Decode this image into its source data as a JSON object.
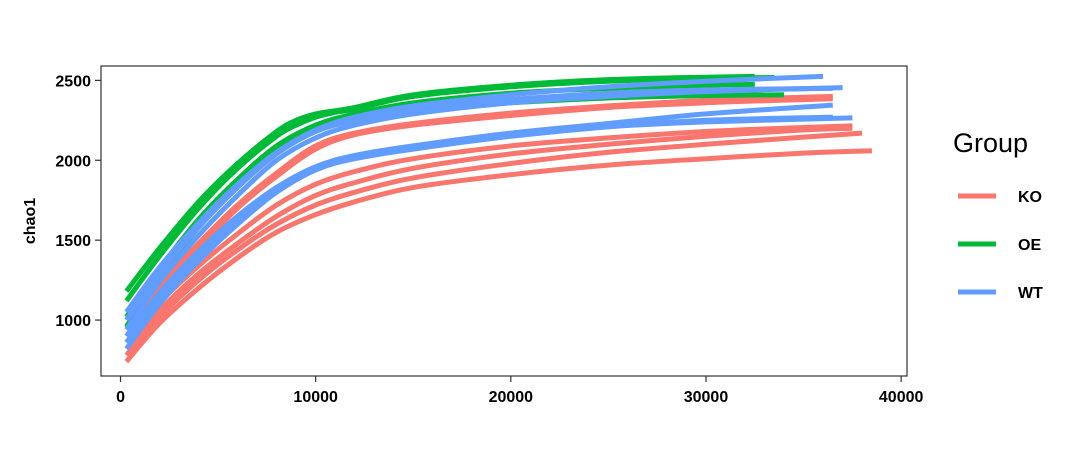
{
  "chart_data": {
    "type": "line",
    "title": "",
    "xlabel": "",
    "ylabel": "chao1",
    "xlim": [
      -1000,
      40300
    ],
    "ylim": [
      650,
      2590
    ],
    "x_ticks": [
      0,
      10000,
      20000,
      30000,
      40000
    ],
    "x_tick_labels": [
      "0",
      "10000",
      "20000",
      "30000",
      "40000"
    ],
    "y_ticks": [
      1000,
      1500,
      2000,
      2500
    ],
    "y_tick_labels": [
      "1000",
      "1500",
      "2000",
      "2500"
    ],
    "grid": false,
    "legend": {
      "title": "Group",
      "position": "right",
      "entries": [
        {
          "label": "KO",
          "color": "#F8766D"
        },
        {
          "label": "OE",
          "color": "#00BA38"
        },
        {
          "label": "WT",
          "color": "#619CFF"
        }
      ]
    },
    "series": [
      {
        "group": "KO",
        "color": "#F8766D",
        "x": [
          300,
          2000,
          4000,
          6000,
          8000,
          10000,
          12000,
          15000,
          20000,
          25000,
          30000,
          35000,
          38500
        ],
        "y": [
          740,
          980,
          1200,
          1390,
          1550,
          1660,
          1740,
          1830,
          1910,
          1970,
          2010,
          2045,
          2060
        ]
      },
      {
        "group": "KO",
        "color": "#F8766D",
        "x": [
          300,
          2000,
          4000,
          6000,
          8000,
          10000,
          12000,
          15000,
          20000,
          25000,
          30000,
          35000,
          38000
        ],
        "y": [
          780,
          1020,
          1250,
          1440,
          1600,
          1720,
          1800,
          1890,
          1980,
          2050,
          2100,
          2145,
          2170
        ]
      },
      {
        "group": "KO",
        "color": "#F8766D",
        "x": [
          300,
          2000,
          4000,
          6000,
          8000,
          10000,
          12000,
          15000,
          20000,
          25000,
          30000,
          35000,
          37500
        ],
        "y": [
          820,
          1060,
          1290,
          1480,
          1650,
          1780,
          1860,
          1950,
          2040,
          2100,
          2150,
          2190,
          2200
        ]
      },
      {
        "group": "KO",
        "color": "#F8766D",
        "x": [
          300,
          2000,
          4000,
          6000,
          8000,
          10000,
          12000,
          15000,
          20000,
          25000,
          30000,
          35000,
          37500
        ],
        "y": [
          860,
          1110,
          1340,
          1540,
          1720,
          1850,
          1930,
          2010,
          2090,
          2140,
          2180,
          2205,
          2215
        ]
      },
      {
        "group": "KO",
        "color": "#F8766D",
        "x": [
          300,
          2000,
          4000,
          6000,
          8000,
          10000,
          12000,
          15000,
          20000,
          25000,
          30000,
          35000,
          36500
        ],
        "y": [
          900,
          1180,
          1450,
          1700,
          1900,
          2070,
          2160,
          2220,
          2280,
          2330,
          2360,
          2380,
          2385
        ]
      },
      {
        "group": "KO",
        "color": "#F8766D",
        "x": [
          300,
          2000,
          4000,
          6000,
          8000,
          10000,
          12000,
          15000,
          20000,
          25000,
          30000,
          35000,
          36500
        ],
        "y": [
          950,
          1220,
          1480,
          1720,
          1920,
          2090,
          2170,
          2230,
          2295,
          2340,
          2375,
          2395,
          2400
        ]
      },
      {
        "group": "OE",
        "color": "#00BA38",
        "x": [
          300,
          2000,
          4000,
          6000,
          8000,
          9000,
          10000,
          11000,
          12000,
          15000,
          20000,
          25000,
          30000,
          32500
        ],
        "y": [
          1180,
          1450,
          1740,
          1980,
          2180,
          2250,
          2290,
          2310,
          2330,
          2410,
          2470,
          2505,
          2520,
          2525
        ]
      },
      {
        "group": "OE",
        "color": "#00BA38",
        "x": [
          300,
          2000,
          4000,
          6000,
          8000,
          9000,
          10000,
          11000,
          12000,
          15000,
          20000,
          25000,
          30000,
          33500
        ],
        "y": [
          1120,
          1400,
          1700,
          1950,
          2150,
          2220,
          2270,
          2300,
          2320,
          2400,
          2460,
          2495,
          2512,
          2518
        ]
      },
      {
        "group": "OE",
        "color": "#00BA38",
        "x": [
          300,
          2000,
          4000,
          6000,
          8000,
          10000,
          12000,
          15000,
          20000,
          25000,
          30000,
          32500
        ],
        "y": [
          1020,
          1320,
          1630,
          1880,
          2090,
          2220,
          2290,
          2360,
          2420,
          2450,
          2470,
          2475
        ]
      },
      {
        "group": "OE",
        "color": "#00BA38",
        "x": [
          300,
          2000,
          4000,
          6000,
          8000,
          10000,
          12000,
          15000,
          20000,
          25000,
          30000,
          34000
        ],
        "y": [
          960,
          1270,
          1580,
          1840,
          2060,
          2190,
          2260,
          2320,
          2360,
          2390,
          2405,
          2410
        ]
      },
      {
        "group": "WT",
        "color": "#619CFF",
        "x": [
          300,
          2000,
          4000,
          6000,
          8000,
          10000,
          12000,
          15000,
          20000,
          25000,
          30000,
          36000
        ],
        "y": [
          1050,
          1330,
          1610,
          1850,
          2050,
          2190,
          2270,
          2340,
          2410,
          2460,
          2495,
          2525
        ]
      },
      {
        "group": "WT",
        "color": "#619CFF",
        "x": [
          300,
          2000,
          4000,
          6000,
          8000,
          10000,
          12000,
          15000,
          20000,
          25000,
          30000,
          36500
        ],
        "y": [
          1000,
          1290,
          1580,
          1830,
          2040,
          2180,
          2250,
          2320,
          2380,
          2420,
          2440,
          2450
        ]
      },
      {
        "group": "WT",
        "color": "#619CFF",
        "x": [
          300,
          2000,
          4000,
          6000,
          8000,
          10000,
          12000,
          15000,
          20000,
          25000,
          30000,
          37000
        ],
        "y": [
          940,
          1240,
          1530,
          1780,
          2000,
          2140,
          2220,
          2290,
          2360,
          2400,
          2430,
          2455
        ]
      },
      {
        "group": "WT",
        "color": "#619CFF",
        "x": [
          300,
          2000,
          4000,
          6000,
          8000,
          10000,
          12000,
          15000,
          20000,
          25000,
          30000,
          36500
        ],
        "y": [
          900,
          1170,
          1430,
          1650,
          1830,
          1960,
          2030,
          2090,
          2170,
          2230,
          2290,
          2345
        ]
      },
      {
        "group": "WT",
        "color": "#619CFF",
        "x": [
          300,
          2000,
          4000,
          6000,
          8000,
          10000,
          12000,
          15000,
          20000,
          25000,
          30000,
          37500
        ],
        "y": [
          860,
          1130,
          1390,
          1620,
          1810,
          1950,
          2020,
          2080,
          2160,
          2210,
          2240,
          2265
        ]
      },
      {
        "group": "WT",
        "color": "#619CFF",
        "x": [
          300,
          2000,
          4000,
          6000,
          8000,
          10000,
          12000,
          15000,
          20000,
          25000,
          30000,
          36500
        ],
        "y": [
          820,
          1100,
          1370,
          1600,
          1800,
          1940,
          2010,
          2070,
          2150,
          2210,
          2250,
          2270
        ]
      }
    ]
  }
}
